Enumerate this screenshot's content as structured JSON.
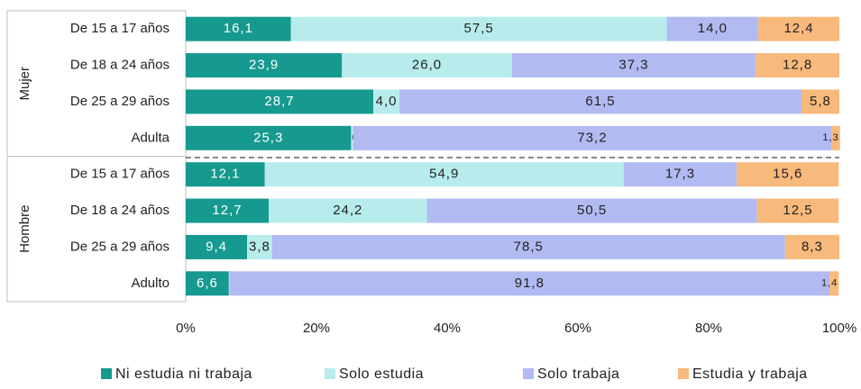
{
  "chart_data": {
    "type": "stacked-bar-horizontal",
    "groups": [
      {
        "name": "Mujer",
        "categories": [
          "De 15 a 17 años",
          "De 18 a 24 años",
          "De 25 a 29 años",
          "Adulta"
        ]
      },
      {
        "name": "Hombre",
        "categories": [
          "De 15 a 17 años",
          "De 18 a 24 años",
          "De 25 a 29 años",
          "Adulto"
        ]
      }
    ],
    "series": [
      {
        "name": "Ni estudia ni trabaja",
        "color": "#16998f",
        "values": [
          16.1,
          23.9,
          28.7,
          25.3,
          12.1,
          12.7,
          9.4,
          6.6
        ],
        "value_labels": [
          "16,1",
          "23,9",
          "28,7",
          "25,3",
          "12,1",
          "12,7",
          "9,4",
          "6,6"
        ]
      },
      {
        "name": "Solo estudia",
        "color": "#b8ecec",
        "values": [
          57.5,
          26.0,
          4.0,
          0.3,
          54.9,
          24.2,
          3.8,
          0.1
        ],
        "value_labels": [
          "57,5",
          "26,0",
          "4,0",
          "0,3",
          "54,9",
          "24,2",
          "3,8",
          "0,1"
        ]
      },
      {
        "name": "Solo trabaja",
        "color": "#b1baf1",
        "values": [
          14.0,
          37.3,
          61.5,
          73.2,
          17.3,
          50.5,
          78.5,
          91.8
        ],
        "value_labels": [
          "14,0",
          "37,3",
          "61,5",
          "73,2",
          "17,3",
          "50,5",
          "78,5",
          "91,8"
        ]
      },
      {
        "name": "Estudia y trabaja",
        "color": "#f8b97c",
        "values": [
          12.4,
          12.8,
          5.8,
          1.3,
          15.6,
          12.5,
          8.3,
          1.4
        ],
        "value_labels": [
          "12,4",
          "12,8",
          "5,8",
          "1,3",
          "15,6",
          "12,5",
          "8,3",
          "1,4"
        ]
      }
    ],
    "xlim": [
      0,
      100
    ],
    "xticks": [
      {
        "value": 0,
        "label": "0%"
      },
      {
        "value": 20,
        "label": "20%"
      },
      {
        "value": 40,
        "label": "40%"
      },
      {
        "value": 60,
        "label": "60%"
      },
      {
        "value": 80,
        "label": "80%"
      },
      {
        "value": 100,
        "label": "100%"
      }
    ],
    "legend": "bottom"
  }
}
